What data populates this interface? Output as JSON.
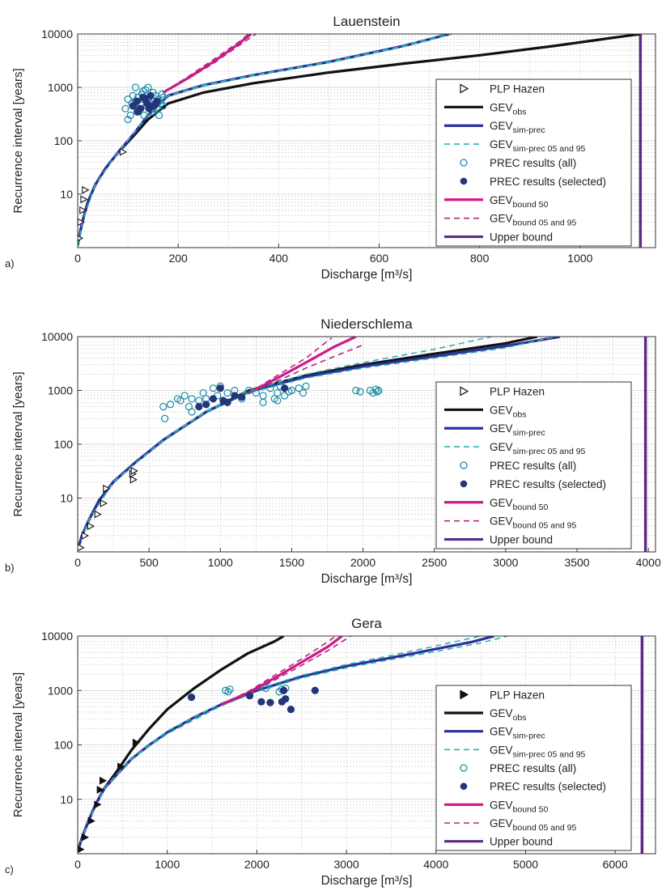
{
  "colors": {
    "obs": "#111111",
    "sim": "#2a2f9a",
    "sim_band": "#2fb3b0",
    "prec": "#1a8aa8",
    "prec_sel": "#24357a",
    "bound50": "#d0188a",
    "bound_band": "#b0287a",
    "upper": "#5c2a8a",
    "grid": "#cfcfcf"
  },
  "chart_data": [
    {
      "type": "line",
      "title": "Lauenstein",
      "panel_label": "a)",
      "xlabel": "Discharge [m³/s]",
      "ylabel": "Recurrence interval [years]",
      "xlim": [
        0,
        1150
      ],
      "ylim": [
        1,
        10000
      ],
      "yscale": "log",
      "grid": true,
      "legend_position": "right",
      "xticks": [
        0,
        200,
        400,
        600,
        800,
        1000
      ],
      "yticks": [
        10,
        100,
        1000,
        10000
      ],
      "legend": [
        {
          "key": "plp",
          "main": "PLP Hazen",
          "sub": "",
          "tail": ""
        },
        {
          "key": "obs",
          "main": "GEV",
          "sub": "obs",
          "tail": ""
        },
        {
          "key": "sim",
          "main": "GEV",
          "sub": "sim-prec",
          "tail": ""
        },
        {
          "key": "sim_band",
          "main": "GEV",
          "sub": "sim-prec 05 and 95",
          "tail": ""
        },
        {
          "key": "prec_all",
          "main": "PREC results (all)",
          "sub": "",
          "tail": ""
        },
        {
          "key": "prec_sel",
          "main": "PREC results (selected)",
          "sub": "",
          "tail": ""
        },
        {
          "key": "b50",
          "main": "GEV",
          "sub": "bound 50",
          "tail": ""
        },
        {
          "key": "bband",
          "main": "GEV",
          "sub": "bound 05 and 95",
          "tail": ""
        },
        {
          "key": "upper",
          "main": "Upper bound",
          "sub": "",
          "tail": ""
        }
      ],
      "series": [
        {
          "key": "obs",
          "x": [
            0,
            5,
            10,
            20,
            35,
            55,
            80,
            110,
            140,
            180,
            250,
            350,
            500,
            650,
            800,
            950,
            1120
          ],
          "y": [
            1.1,
            2,
            3.2,
            7,
            15,
            30,
            60,
            120,
            250,
            500,
            800,
            1200,
            1900,
            2800,
            4000,
            6000,
            10000
          ]
        },
        {
          "key": "sim",
          "x": [
            0,
            5,
            10,
            20,
            35,
            55,
            80,
            110,
            140,
            180,
            250,
            350,
            500,
            650,
            740
          ],
          "y": [
            1.1,
            2,
            3.2,
            7,
            15,
            30,
            60,
            130,
            300,
            700,
            1100,
            1700,
            3000,
            6000,
            10000
          ]
        },
        {
          "key": "sim_band",
          "x": [
            0,
            10,
            35,
            80,
            140,
            180,
            250,
            350,
            500,
            650,
            730
          ],
          "y": [
            1.1,
            3.2,
            15,
            60,
            300,
            700,
            1100,
            1700,
            3000,
            6000,
            10000
          ]
        },
        {
          "key": "sim_band",
          "x": [
            0,
            10,
            35,
            80,
            140,
            180,
            250,
            350,
            500,
            650,
            745
          ],
          "y": [
            1.1,
            3.2,
            15,
            60,
            300,
            700,
            1050,
            1650,
            2900,
            5800,
            10000
          ]
        },
        {
          "key": "b50",
          "x": [
            170,
            220,
            270,
            320,
            345
          ],
          "y": [
            800,
            1500,
            3000,
            6500,
            10000
          ]
        },
        {
          "key": "bband",
          "x": [
            170,
            220,
            270,
            320,
            340
          ],
          "y": [
            800,
            1600,
            3300,
            7000,
            10000
          ]
        },
        {
          "key": "bband",
          "x": [
            170,
            220,
            270,
            320,
            355
          ],
          "y": [
            800,
            1450,
            2800,
            6000,
            10000
          ]
        }
      ],
      "plp": {
        "x": [
          3,
          6,
          10,
          12,
          15,
          90
        ],
        "y": [
          1.5,
          3,
          5,
          8,
          12,
          62
        ]
      },
      "prec_all": {
        "x": [
          95,
          100,
          105,
          108,
          110,
          112,
          115,
          118,
          120,
          122,
          125,
          128,
          130,
          132,
          135,
          138,
          140,
          142,
          145,
          148,
          150,
          152,
          155,
          158,
          160,
          162,
          165,
          168,
          170,
          100,
          130,
          150,
          170,
          115
        ],
        "y": [
          400,
          600,
          300,
          500,
          700,
          450,
          550,
          350,
          650,
          400,
          500,
          750,
          600,
          300,
          900,
          450,
          1000,
          650,
          500,
          350,
          800,
          550,
          700,
          400,
          600,
          300,
          500,
          750,
          450,
          250,
          850,
          400,
          650,
          1000
        ]
      },
      "prec_sel": {
        "x": [
          110,
          118,
          125,
          130,
          138,
          145,
          150,
          158,
          120,
          135,
          142,
          155
        ],
        "y": [
          450,
          550,
          400,
          650,
          500,
          700,
          450,
          550,
          350,
          600,
          400,
          500
        ]
      },
      "upper": 1120
    },
    {
      "type": "line",
      "title": "Niederschlema",
      "panel_label": "b)",
      "xlabel": "Discharge [m³/s]",
      "ylabel": "Recurrence interval [years]",
      "xlim": [
        0,
        4050
      ],
      "ylim": [
        1,
        10000
      ],
      "yscale": "log",
      "grid": true,
      "legend_position": "right",
      "xticks": [
        0,
        500,
        1000,
        1500,
        2000,
        2500,
        3000,
        3500,
        4000
      ],
      "yticks": [
        10,
        100,
        1000,
        10000
      ],
      "legend": [
        {
          "key": "plp",
          "main": "PLP Hazen",
          "sub": "",
          "tail": ""
        },
        {
          "key": "obs",
          "main": "GEV",
          "sub": "obs",
          "tail": ""
        },
        {
          "key": "sim",
          "main": "GEV",
          "sub": "sim-prec",
          "tail": ""
        },
        {
          "key": "sim_band",
          "main": "GEV",
          "sub": "sim-prec 05 and 95",
          "tail": ""
        },
        {
          "key": "prec_all",
          "main": "PREC results (all)",
          "sub": "",
          "tail": ""
        },
        {
          "key": "prec_sel",
          "main": "PREC results (selected)",
          "sub": "",
          "tail": ""
        },
        {
          "key": "b50",
          "main": "GEV",
          "sub": "bound 50",
          "tail": ""
        },
        {
          "key": "bband",
          "main": "GEV",
          "sub": "bound 05 and 95",
          "tail": ""
        },
        {
          "key": "upper",
          "main": "Upper bound",
          "sub": "",
          "tail": ""
        }
      ],
      "series": [
        {
          "key": "obs",
          "x": [
            0,
            30,
            80,
            150,
            250,
            400,
            600,
            900,
            1200,
            1600,
            2000,
            2500,
            3000,
            3220
          ],
          "y": [
            1.1,
            2,
            4,
            9,
            20,
            45,
            120,
            400,
            1000,
            1900,
            3000,
            4800,
            7500,
            10000
          ]
        },
        {
          "key": "sim",
          "x": [
            0,
            30,
            80,
            150,
            250,
            400,
            600,
            900,
            1200,
            1600,
            2000,
            2500,
            3000,
            3380
          ],
          "y": [
            1.1,
            2,
            4,
            9,
            20,
            45,
            120,
            400,
            950,
            1800,
            2800,
            4300,
            6700,
            10000
          ]
        },
        {
          "key": "sim_band",
          "x": [
            0,
            80,
            250,
            600,
            900,
            1200,
            1600,
            2000,
            2500,
            2900
          ],
          "y": [
            1.1,
            4,
            20,
            120,
            420,
            1000,
            2000,
            3300,
            5800,
            10000
          ]
        },
        {
          "key": "sim_band",
          "x": [
            0,
            80,
            250,
            600,
            900,
            1200,
            1600,
            2000,
            2500,
            3000,
            3350
          ],
          "y": [
            1.1,
            4,
            20,
            120,
            400,
            900,
            1700,
            2600,
            4000,
            6200,
            10000
          ]
        },
        {
          "key": "b50",
          "x": [
            1200,
            1400,
            1600,
            1800,
            1950
          ],
          "y": [
            900,
            1700,
            3300,
            6500,
            10000
          ]
        },
        {
          "key": "bband",
          "x": [
            1200,
            1400,
            1600,
            1780
          ],
          "y": [
            900,
            1900,
            4000,
            9500
          ]
        },
        {
          "key": "bband",
          "x": [
            1200,
            1400,
            1600,
            1800,
            2000
          ],
          "y": [
            900,
            1500,
            2600,
            4300,
            7000
          ]
        }
      ],
      "plp": {
        "x": [
          20,
          50,
          90,
          140,
          180,
          200,
          385,
          390,
          395
        ],
        "y": [
          1.2,
          2,
          3,
          5,
          8,
          15,
          28,
          22,
          32
        ]
      },
      "prec_all": {
        "x": [
          600,
          610,
          650,
          700,
          720,
          750,
          780,
          800,
          850,
          880,
          900,
          950,
          980,
          1000,
          1050,
          1100,
          1150,
          1200,
          1250,
          1300,
          1350,
          1380,
          1400,
          1420,
          1450,
          1480,
          1500,
          1550,
          1580,
          1600,
          1950,
          1980,
          2050,
          2070,
          2090,
          2100,
          2110,
          1300,
          800,
          1400
        ],
        "y": [
          500,
          300,
          550,
          700,
          650,
          800,
          500,
          700,
          650,
          900,
          700,
          1100,
          800,
          1200,
          900,
          1000,
          700,
          1000,
          900,
          800,
          1100,
          700,
          900,
          1200,
          800,
          950,
          1000,
          1100,
          900,
          1200,
          1000,
          950,
          1000,
          900,
          1050,
          950,
          1000,
          600,
          400,
          650
        ]
      },
      "prec_sel": {
        "x": [
          850,
          950,
          1000,
          1050,
          1100,
          900,
          1020,
          1150,
          1450
        ],
        "y": [
          500,
          700,
          1100,
          600,
          800,
          550,
          650,
          750,
          1100
        ]
      },
      "upper": 3980
    },
    {
      "type": "line",
      "title": "Gera",
      "panel_label": "c)",
      "xlabel": "Discharge [m³/s]",
      "ylabel": "Recurrence interval [years]",
      "xlim": [
        0,
        6450
      ],
      "ylim": [
        1,
        10000
      ],
      "yscale": "log",
      "grid": true,
      "legend_position": "right",
      "xticks": [
        0,
        1000,
        2000,
        3000,
        4000,
        5000,
        6000
      ],
      "yticks": [
        10,
        100,
        1000,
        10000
      ],
      "legend": [
        {
          "key": "plp_filled",
          "main": "PLP Hazen",
          "sub": "",
          "tail": ""
        },
        {
          "key": "obs",
          "main": "GEV",
          "sub": "obs",
          "tail": ""
        },
        {
          "key": "sim",
          "main": "GEV",
          "sub": "sim-prec",
          "tail": ""
        },
        {
          "key": "sim_band",
          "main": "GEV",
          "sub": "sim-prec 05 and 95",
          "tail": ""
        },
        {
          "key": "prec_all",
          "main": "PREC results (all)",
          "sub": "",
          "tail": ""
        },
        {
          "key": "prec_sel",
          "main": "PREC results (selected)",
          "sub": "",
          "tail": ""
        },
        {
          "key": "b50",
          "main": "GEV",
          "sub": "bound 50",
          "tail": ""
        },
        {
          "key": "bband",
          "main": "GEV",
          "sub": "bound 05 and 95",
          "tail": ""
        },
        {
          "key": "upper",
          "main": "Upper bound",
          "sub": "",
          "tail": ""
        }
      ],
      "series": [
        {
          "key": "obs",
          "x": [
            0,
            50,
            120,
            200,
            300,
            450,
            600,
            800,
            1000,
            1300,
            1600,
            1900,
            2200,
            2300
          ],
          "y": [
            1.1,
            2,
            4,
            8,
            16,
            35,
            80,
            200,
            450,
            1100,
            2400,
            4800,
            8000,
            10000
          ]
        },
        {
          "key": "sim",
          "x": [
            0,
            50,
            120,
            200,
            300,
            450,
            600,
            800,
            1000,
            1300,
            1600,
            2000,
            2500,
            3000,
            3500,
            4000,
            4400,
            4650
          ],
          "y": [
            1.1,
            2,
            4,
            8,
            16,
            30,
            55,
            100,
            170,
            320,
            550,
            1000,
            1800,
            2800,
            4000,
            5800,
            7800,
            10000
          ]
        },
        {
          "key": "sim_band",
          "x": [
            0,
            120,
            300,
            600,
            1000,
            1600,
            2000,
            2500,
            3000,
            3500,
            4000,
            4500
          ],
          "y": [
            1.1,
            4,
            16,
            55,
            180,
            580,
            1050,
            1900,
            3000,
            4400,
            6600,
            10000
          ]
        },
        {
          "key": "sim_band",
          "x": [
            0,
            120,
            300,
            600,
            1000,
            1600,
            2000,
            2500,
            3000,
            3500,
            4000,
            4500,
            4800
          ],
          "y": [
            1.1,
            4,
            16,
            55,
            160,
            520,
            950,
            1700,
            2600,
            3700,
            5200,
            7500,
            10000
          ]
        },
        {
          "key": "b50",
          "x": [
            1600,
            1900,
            2200,
            2500,
            2800,
            2950
          ],
          "y": [
            550,
            900,
            1700,
            3300,
            6500,
            10000
          ]
        },
        {
          "key": "bband",
          "x": [
            1600,
            1900,
            2200,
            2500,
            2800,
            2880
          ],
          "y": [
            550,
            950,
            1900,
            3800,
            8000,
            10000
          ]
        },
        {
          "key": "bband",
          "x": [
            1600,
            1900,
            2200,
            2500,
            2800,
            3050
          ],
          "y": [
            550,
            850,
            1550,
            2900,
            5500,
            10000
          ]
        }
      ],
      "plp": {
        "x": [
          30,
          80,
          150,
          220,
          250,
          280,
          480,
          650
        ],
        "y": [
          1.2,
          2,
          4,
          8,
          15,
          22,
          40,
          110
        ]
      },
      "prec_all": {
        "x": [
          1650,
          1680,
          1700,
          2100,
          2250,
          2280,
          2300,
          2320
        ],
        "y": [
          1000,
          950,
          1050,
          1100,
          950,
          1050,
          1000,
          1100
        ]
      },
      "prec_sel": {
        "x": [
          1270,
          1920,
          2050,
          2150,
          2300,
          2320,
          2380,
          2650,
          2280
        ],
        "y": [
          750,
          800,
          620,
          600,
          1000,
          700,
          450,
          1000,
          620
        ]
      },
      "upper": 6300
    }
  ]
}
